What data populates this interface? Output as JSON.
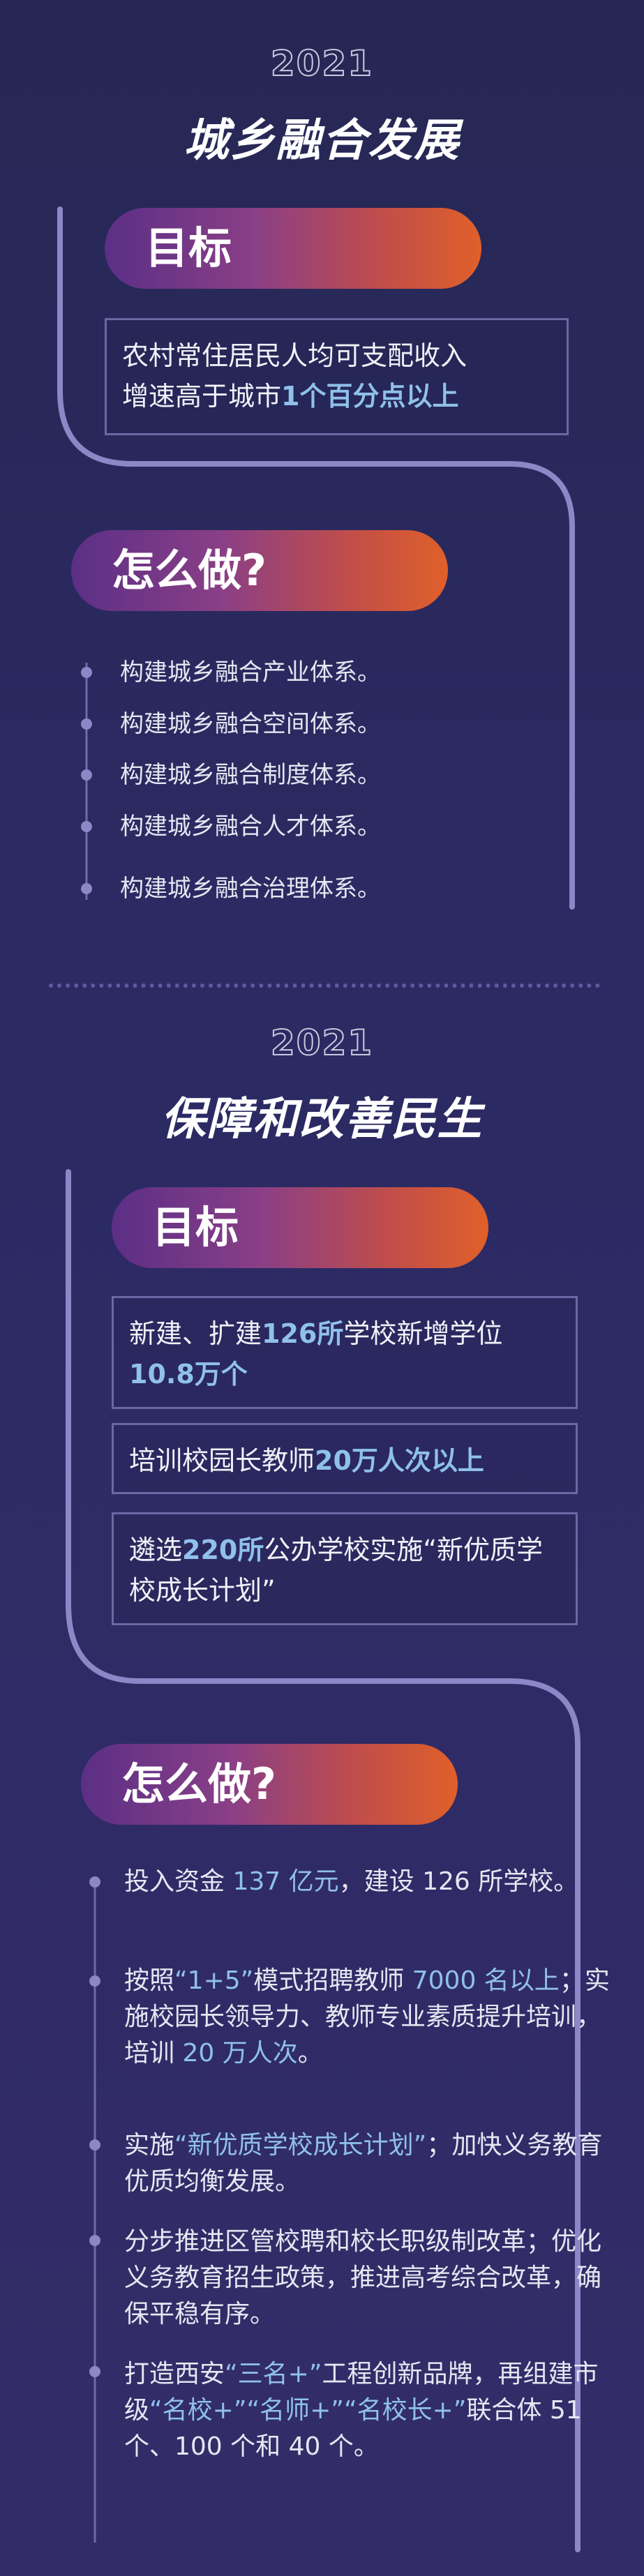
{
  "section1": {
    "year": "2021",
    "title": "城乡融合发展",
    "goal_label": "目标",
    "goal_text_a": "农村常住居民人均可支配收入",
    "goal_text_b": "增速高于城市",
    "goal_text_hl": "1个百分点以上",
    "how_label": "怎么做?",
    "items": [
      "构建城乡融合产业体系。",
      "构建城乡融合空间体系。",
      "构建城乡融合制度体系。",
      "构建城乡融合人才体系。",
      "构建城乡融合治理体系。"
    ]
  },
  "section2": {
    "year": "2021",
    "title": "保障和改善民生",
    "goal_label": "目标",
    "goals": [
      {
        "a": "新建、扩建",
        "hl1": "126所",
        "b": "学校新增学位",
        "hl2": "10.8万个"
      },
      {
        "a": "培训校园长教师",
        "hl1": "20万人次以上"
      },
      {
        "a": "遴选",
        "hl1": "220所",
        "b": "公办学校实施“新优质学校成长计划”"
      }
    ],
    "how_label": "怎么做?",
    "steps": [
      {
        "p1": "投入资金 ",
        "n1": "137 亿元",
        "p2": "，建设 126 所学校。"
      },
      {
        "p1": "按照",
        "n1": "“1+5”",
        "p2": "模式招聘教师 ",
        "n2": "7000 名以上",
        "p3": "；实施校园长领导力、教师专业素质提升培训，培训 ",
        "n3": "20 万人次",
        "p4": "。"
      },
      {
        "p1": "实施",
        "n1": "“新优质学校成长计划”",
        "p2": "；加快义务教育优质均衡发展。"
      },
      {
        "p1": "分步推进区管校聘和校长职级制改革；优化义务教育招生政策，推进高考综合改革，确保平稳有序。"
      },
      {
        "p1": "打造西安",
        "n1": "“三名+”",
        "p2": "工程创新品牌，再组建市级",
        "n2": "“名校+”“名师+”“名校长+”",
        "p3": "联合体 51 个、100 个和 40 个。"
      }
    ]
  }
}
